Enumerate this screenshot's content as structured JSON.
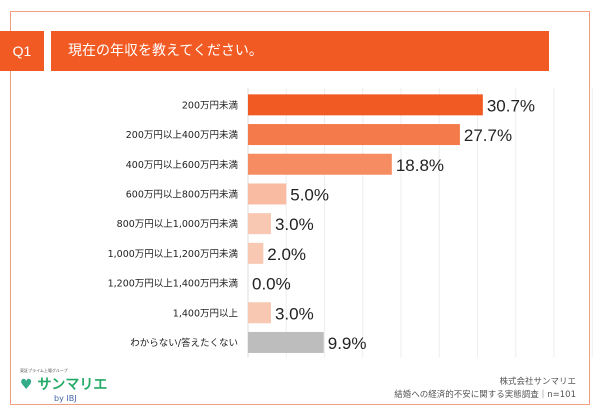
{
  "header": {
    "q_label": "Q1",
    "question": "現在の年収を教えてください。"
  },
  "chart_data": {
    "type": "bar",
    "orientation": "horizontal",
    "categories": [
      "200万円未満",
      "200万円以上400万円未満",
      "400万円以上600万円未満",
      "600万円以上800万円未満",
      "800万円以上1,000万円未満",
      "1,000万円以上1,200万円未満",
      "1,200万円以上1,400万円未満",
      "1,400万円以上",
      "わからない/答えたくない"
    ],
    "values": [
      30.7,
      27.7,
      18.8,
      5.0,
      3.0,
      2.0,
      0.0,
      3.0,
      9.9
    ],
    "value_labels": [
      "30.7%",
      "27.7%",
      "18.8%",
      "5.0%",
      "3.0%",
      "2.0%",
      "0.0%",
      "3.0%",
      "9.9%"
    ],
    "colors": [
      "#f15a22",
      "#f47a4b",
      "#f68c62",
      "#f9bca2",
      "#f9c8b2",
      "#f9c8b2",
      "#f9c8b2",
      "#f9c8b2",
      "#bdbdbd"
    ],
    "xlim": [
      0,
      45
    ],
    "grid": true,
    "grid_step": 5
  },
  "footer": {
    "logo_tagline": "東証プライム上場グループ",
    "logo_name": "サンマリエ",
    "logo_by": "by IBJ",
    "company": "株式会社サンマリエ",
    "survey": "結婚への経済的不安に関する実態調査｜n=101"
  }
}
